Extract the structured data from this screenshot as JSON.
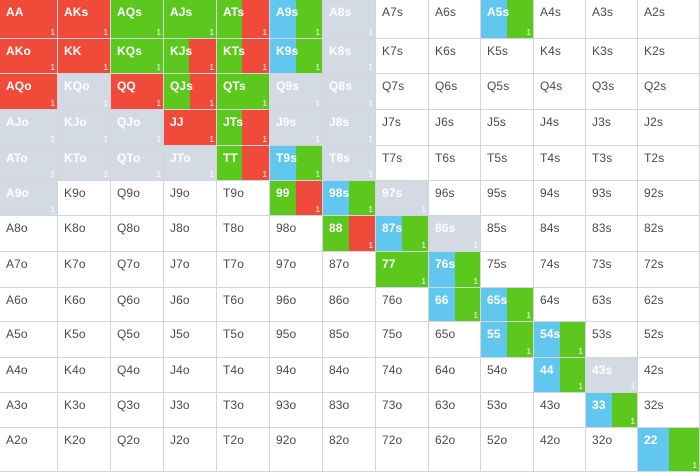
{
  "colors": {
    "fold": "#ffffff",
    "raise": "#f04a3a",
    "call": "#5cc81e",
    "check": "#62c7ee",
    "gray": "#d4dae4",
    "text_dark": "#4a4a4a",
    "text_light": "#ffffff"
  },
  "grid": {
    "rows": [
      [
        "AA",
        "AKs",
        "AQs",
        "AJs",
        "ATs",
        "A9s",
        "A8s",
        "A7s",
        "A6s",
        "A5s",
        "A4s",
        "A3s",
        "A2s"
      ],
      [
        "AKo",
        "KK",
        "KQs",
        "KJs",
        "KTs",
        "K9s",
        "K8s",
        "K7s",
        "K6s",
        "K5s",
        "K4s",
        "K3s",
        "K2s"
      ],
      [
        "AQo",
        "KQo",
        "QQ",
        "QJs",
        "QTs",
        "Q9s",
        "Q8s",
        "Q7s",
        "Q6s",
        "Q5s",
        "Q4s",
        "Q3s",
        "Q2s"
      ],
      [
        "AJo",
        "KJo",
        "QJo",
        "JJ",
        "JTs",
        "J9s",
        "J8s",
        "J7s",
        "J6s",
        "J5s",
        "J4s",
        "J3s",
        "J2s"
      ],
      [
        "ATo",
        "KTo",
        "QTo",
        "JTo",
        "TT",
        "T9s",
        "T8s",
        "T7s",
        "T6s",
        "T5s",
        "T4s",
        "T3s",
        "T2s"
      ],
      [
        "A9o",
        "K9o",
        "Q9o",
        "J9o",
        "T9o",
        "99",
        "98s",
        "97s",
        "96s",
        "95s",
        "94s",
        "93s",
        "92s"
      ],
      [
        "A8o",
        "K8o",
        "Q8o",
        "J8o",
        "T8o",
        "98o",
        "88",
        "87s",
        "86s",
        "85s",
        "84s",
        "83s",
        "82s"
      ],
      [
        "A7o",
        "K7o",
        "Q7o",
        "J7o",
        "T7o",
        "97o",
        "87o",
        "77",
        "76s",
        "75s",
        "74s",
        "73s",
        "72s"
      ],
      [
        "A6o",
        "K6o",
        "Q6o",
        "J6o",
        "T6o",
        "96o",
        "86o",
        "76o",
        "66",
        "65s",
        "64s",
        "63s",
        "62s"
      ],
      [
        "A5o",
        "K5o",
        "Q5o",
        "J5o",
        "T5o",
        "95o",
        "85o",
        "75o",
        "65o",
        "55",
        "54s",
        "53s",
        "52s"
      ],
      [
        "A4o",
        "K4o",
        "Q4o",
        "J4o",
        "T4o",
        "94o",
        "84o",
        "74o",
        "64o",
        "54o",
        "44",
        "43s",
        "42s"
      ],
      [
        "A3o",
        "K3o",
        "Q3o",
        "J3o",
        "T3o",
        "93o",
        "83o",
        "73o",
        "63o",
        "53o",
        "43o",
        "33",
        "32s"
      ],
      [
        "A2o",
        "K2o",
        "Q2o",
        "J2o",
        "T2o",
        "92o",
        "82o",
        "72o",
        "62o",
        "52o",
        "42o",
        "32o",
        "22"
      ]
    ],
    "segments": {
      "AA": [
        [
          "raise",
          1
        ]
      ],
      "AKs": [
        [
          "raise",
          1
        ]
      ],
      "AQs": [
        [
          "call",
          1
        ]
      ],
      "AJs": [
        [
          "call",
          1
        ]
      ],
      "ATs": [
        [
          "call",
          0.48
        ],
        [
          "raise",
          0.52
        ]
      ],
      "A9s": [
        [
          "check",
          0.5
        ],
        [
          "call",
          0.5
        ]
      ],
      "A8s": [
        [
          "gray",
          1
        ]
      ],
      "A5s": [
        [
          "check",
          0.5
        ],
        [
          "call",
          0.5
        ]
      ],
      "AKo": [
        [
          "raise",
          1
        ]
      ],
      "KK": [
        [
          "raise",
          1
        ]
      ],
      "KQs": [
        [
          "call",
          1
        ]
      ],
      "KJs": [
        [
          "call",
          0.48
        ],
        [
          "raise",
          0.52
        ]
      ],
      "KTs": [
        [
          "call",
          0.48
        ],
        [
          "raise",
          0.52
        ]
      ],
      "K9s": [
        [
          "check",
          0.5
        ],
        [
          "call",
          0.5
        ]
      ],
      "K8s": [
        [
          "gray",
          1
        ]
      ],
      "AQo": [
        [
          "raise",
          1
        ]
      ],
      "KQo": [
        [
          "gray",
          1
        ]
      ],
      "QQ": [
        [
          "raise",
          1
        ]
      ],
      "QJs": [
        [
          "call",
          0.5
        ],
        [
          "raise",
          0.5
        ]
      ],
      "QTs": [
        [
          "call",
          1
        ]
      ],
      "Q9s": [
        [
          "gray",
          1
        ]
      ],
      "Q8s": [
        [
          "gray",
          1
        ]
      ],
      "AJo": [
        [
          "gray",
          1
        ]
      ],
      "KJo": [
        [
          "gray",
          1
        ]
      ],
      "QJo": [
        [
          "gray",
          1
        ]
      ],
      "JJ": [
        [
          "raise",
          1
        ]
      ],
      "JTs": [
        [
          "call",
          0.48
        ],
        [
          "raise",
          0.52
        ]
      ],
      "J9s": [
        [
          "gray",
          1
        ]
      ],
      "J8s": [
        [
          "gray",
          1
        ]
      ],
      "ATo": [
        [
          "gray",
          1
        ]
      ],
      "KTo": [
        [
          "gray",
          1
        ]
      ],
      "QTo": [
        [
          "gray",
          1
        ]
      ],
      "JTo": [
        [
          "gray",
          1
        ]
      ],
      "TT": [
        [
          "call",
          0.48
        ],
        [
          "raise",
          0.52
        ]
      ],
      "T9s": [
        [
          "check",
          0.5
        ],
        [
          "call",
          0.5
        ]
      ],
      "T8s": [
        [
          "gray",
          1
        ]
      ],
      "A9o": [
        [
          "gray",
          1
        ]
      ],
      "99": [
        [
          "call",
          0.5
        ],
        [
          "raise",
          0.5
        ]
      ],
      "98s": [
        [
          "check",
          0.5
        ],
        [
          "call",
          0.5
        ]
      ],
      "97s": [
        [
          "gray",
          1
        ]
      ],
      "88": [
        [
          "call",
          0.5
        ],
        [
          "raise",
          0.5
        ]
      ],
      "87s": [
        [
          "check",
          0.5
        ],
        [
          "call",
          0.5
        ]
      ],
      "86s": [
        [
          "gray",
          1
        ]
      ],
      "77": [
        [
          "call",
          1
        ]
      ],
      "76s": [
        [
          "check",
          0.5
        ],
        [
          "call",
          0.5
        ]
      ],
      "66": [
        [
          "check",
          0.5
        ],
        [
          "call",
          0.5
        ]
      ],
      "65s": [
        [
          "check",
          0.5
        ],
        [
          "call",
          0.5
        ]
      ],
      "55": [
        [
          "check",
          0.5
        ],
        [
          "call",
          0.5
        ]
      ],
      "54s": [
        [
          "check",
          0.5
        ],
        [
          "call",
          0.5
        ]
      ],
      "44": [
        [
          "check",
          0.5
        ],
        [
          "call",
          0.5
        ]
      ],
      "43s": [
        [
          "gray",
          1
        ]
      ],
      "33": [
        [
          "check",
          0.5
        ],
        [
          "call",
          0.5
        ]
      ],
      "22": [
        [
          "check",
          0.5
        ],
        [
          "call",
          0.5
        ]
      ]
    },
    "counts": {
      "AA": "1",
      "AKs": "1",
      "AQs": "1",
      "AJs": "1",
      "ATs": "1",
      "A9s": "1",
      "A8s": "1",
      "A5s": "1",
      "AKo": "1",
      "KK": "1",
      "KQs": "1",
      "KJs": "1",
      "KTs": "1",
      "K9s": "1",
      "K8s": "1",
      "AQo": "1",
      "KQo": "1",
      "QQ": "1",
      "QJs": "1",
      "QTs": "1",
      "Q9s": "1",
      "Q8s": "1",
      "AJo": "1",
      "KJo": "1",
      "QJo": "1",
      "JJ": "1",
      "JTs": "1",
      "J9s": "1",
      "J8s": "1",
      "ATo": "1",
      "KTo": "1",
      "QTo": "1",
      "JTo": "1",
      "TT": "1",
      "T9s": "1",
      "T8s": "1",
      "A9o": "1",
      "99": "1",
      "98s": "1",
      "97s": "1",
      "88": "1",
      "87s": "1",
      "86s": "1",
      "77": "1",
      "76s": "1",
      "66": "1",
      "65s": "1",
      "55": "1",
      "54s": "1",
      "44": "1",
      "43s": "1",
      "33": "1",
      "22": "1"
    }
  }
}
